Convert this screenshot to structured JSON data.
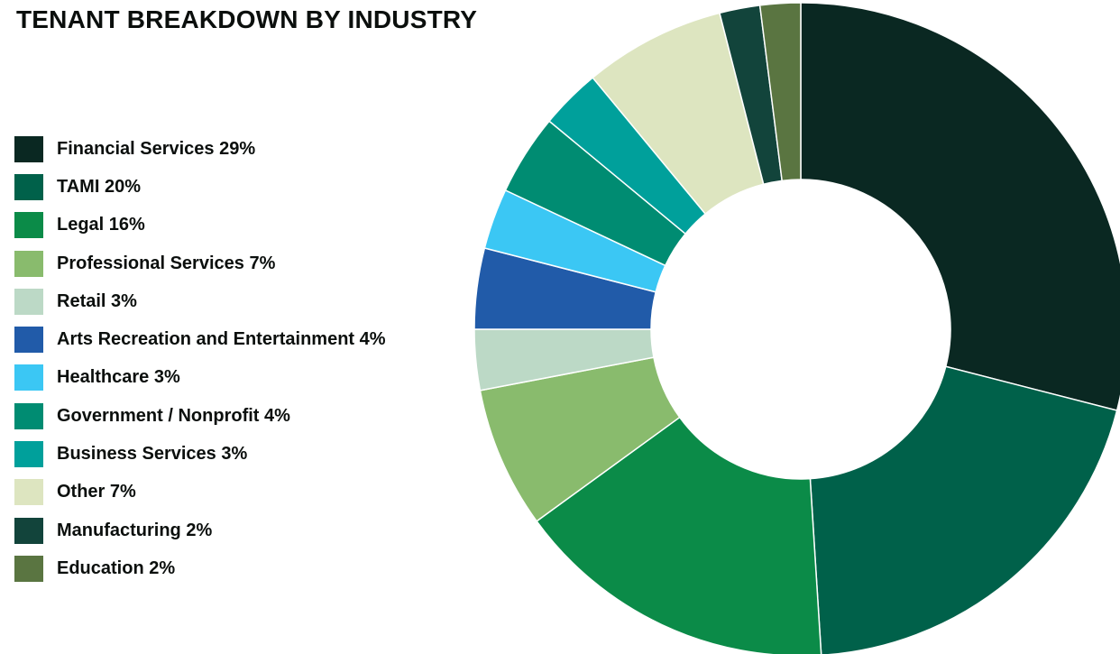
{
  "chart_data": {
    "type": "pie",
    "title": "TENANT BREAKDOWN BY INDUSTRY",
    "legend_position": "left",
    "slices": [
      {
        "label": "Financial Services 29%",
        "name": "Financial Services",
        "value": 29,
        "color": "#0a2822"
      },
      {
        "label": "TAMI 20%",
        "name": "TAMI",
        "value": 20,
        "color": "#00614a"
      },
      {
        "label": "Legal 16%",
        "name": "Legal",
        "value": 16,
        "color": "#0b8b48"
      },
      {
        "label": "Professional Services 7%",
        "name": "Professional Services",
        "value": 7,
        "color": "#89bb6d"
      },
      {
        "label": "Retail 3%",
        "name": "Retail",
        "value": 3,
        "color": "#bcd9c6"
      },
      {
        "label": "Arts Recreation and Entertainment 4%",
        "name": "Arts Recreation and Entertainment",
        "value": 4,
        "color": "#215ba9"
      },
      {
        "label": "Healthcare 3%",
        "name": "Healthcare",
        "value": 3,
        "color": "#3bc7f4"
      },
      {
        "label": "Government / Nonprofit 4%",
        "name": "Government / Nonprofit",
        "value": 4,
        "color": "#008c72"
      },
      {
        "label": "Business Services 3%",
        "name": "Business Services",
        "value": 3,
        "color": "#00a09b"
      },
      {
        "label": "Other 7%",
        "name": "Other",
        "value": 7,
        "color": "#dde5c0"
      },
      {
        "label": "Manufacturing 2%",
        "name": "Manufacturing",
        "value": 2,
        "color": "#12443b"
      },
      {
        "label": "Education 2%",
        "name": "Education",
        "value": 2,
        "color": "#5a7541"
      }
    ]
  }
}
